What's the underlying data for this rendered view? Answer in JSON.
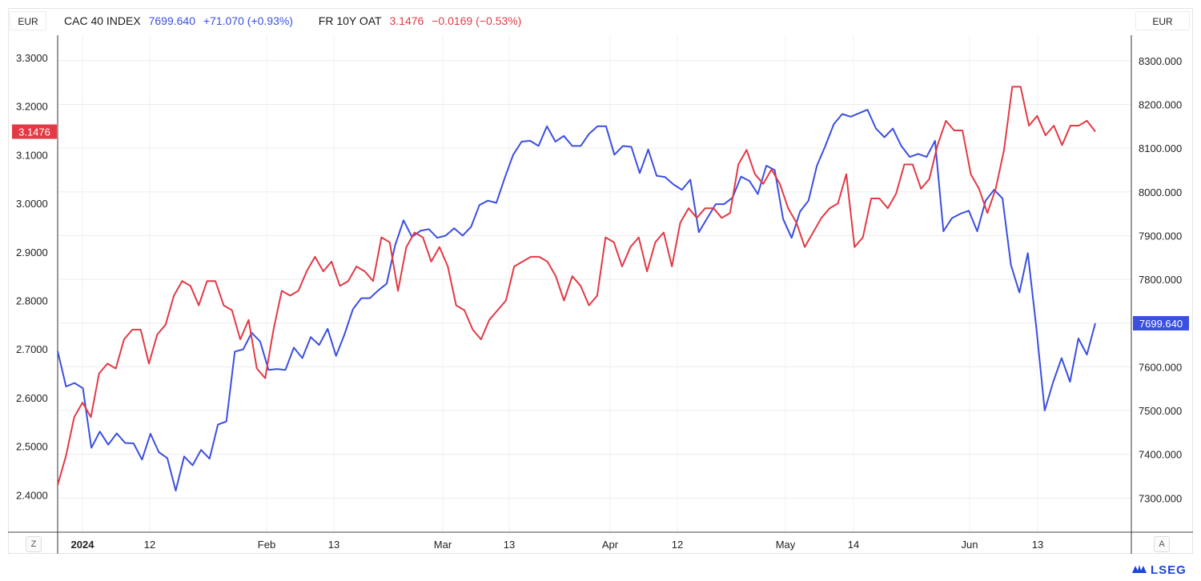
{
  "header": {
    "currency_left": "EUR",
    "currency_right": "EUR",
    "series1": {
      "name": "CAC 40 INDEX",
      "value": "7699.640",
      "change": "+71.070 (+0.93%)"
    },
    "series2": {
      "name": "FR 10Y OAT",
      "value": "3.1476",
      "change": "−0.0169 (−0.53%)"
    }
  },
  "controls": {
    "left": "Z",
    "right": "A"
  },
  "logo": {
    "text": "LSEG"
  },
  "colors": {
    "cac": "#3b4fe0",
    "oat": "#e23a45"
  },
  "chart_data": {
    "type": "line",
    "x_tick_labels": [
      "2024",
      "12",
      "Feb",
      "13",
      "Mar",
      "13",
      "Apr",
      "12",
      "May",
      "14",
      "Jun",
      "13"
    ],
    "y_left": {
      "ticks": [
        "3.3000",
        "3.2000",
        "3.1000",
        "3.0000",
        "2.9000",
        "2.8000",
        "2.7000",
        "2.6000",
        "2.5000",
        "2.4000"
      ],
      "range": [
        2.3,
        3.3
      ]
    },
    "y_right": {
      "ticks": [
        "8300.000",
        "8200.000",
        "8100.000",
        "8000.000",
        "7900.000",
        "7800.000",
        "7700.000",
        "7600.000",
        "7500.000",
        "7400.000",
        "7300.000"
      ],
      "range": [
        7200,
        8300
      ]
    },
    "last_labels": {
      "left": "3.1476",
      "right": "7699.640"
    },
    "series": [
      {
        "name": "CAC 40 INDEX",
        "axis": "right",
        "values": [
          7636,
          7555,
          7563,
          7551,
          7415,
          7452,
          7422,
          7448,
          7426,
          7425,
          7388,
          7447,
          7405,
          7391,
          7317,
          7395,
          7375,
          7410,
          7390,
          7468,
          7475,
          7635,
          7640,
          7678,
          7658,
          7593,
          7595,
          7593,
          7644,
          7620,
          7668,
          7650,
          7687,
          7625,
          7674,
          7732,
          7757,
          7757,
          7775,
          7790,
          7878,
          7935,
          7897,
          7911,
          7915,
          7895,
          7900,
          7917,
          7900,
          7920,
          7970,
          7980,
          7975,
          8032,
          8085,
          8115,
          8117,
          8105,
          8150,
          8115,
          8128,
          8105,
          8105,
          8133,
          8150,
          8150,
          8085,
          8105,
          8103,
          8043,
          8097,
          8037,
          8034,
          8017,
          8005,
          8028,
          7908,
          7940,
          7972,
          7972,
          7987,
          8035,
          8025,
          7995,
          8060,
          8050,
          7938,
          7895,
          7955,
          7980,
          8060,
          8105,
          8155,
          8178,
          8172,
          8180,
          8188,
          8145,
          8125,
          8145,
          8105,
          8080,
          8087,
          8080,
          8117,
          7910,
          7940,
          7950,
          7957,
          7910,
          7980,
          8005,
          7985,
          7833,
          7770,
          7860,
          7692,
          7500,
          7565,
          7620,
          7566,
          7665,
          7628,
          7699.64
        ]
      },
      {
        "name": "FR 10Y OAT",
        "axis": "left",
        "values": [
          2.42,
          2.48,
          2.56,
          2.59,
          2.56,
          2.65,
          2.67,
          2.66,
          2.72,
          2.74,
          2.74,
          2.67,
          2.73,
          2.75,
          2.81,
          2.84,
          2.83,
          2.79,
          2.84,
          2.84,
          2.79,
          2.78,
          2.72,
          2.76,
          2.66,
          2.64,
          2.74,
          2.82,
          2.81,
          2.82,
          2.86,
          2.89,
          2.86,
          2.88,
          2.83,
          2.84,
          2.87,
          2.86,
          2.84,
          2.93,
          2.92,
          2.82,
          2.91,
          2.94,
          2.93,
          2.88,
          2.91,
          2.87,
          2.79,
          2.78,
          2.74,
          2.72,
          2.76,
          2.78,
          2.8,
          2.87,
          2.88,
          2.89,
          2.89,
          2.88,
          2.85,
          2.8,
          2.85,
          2.83,
          2.79,
          2.81,
          2.93,
          2.92,
          2.87,
          2.91,
          2.93,
          2.86,
          2.92,
          2.94,
          2.87,
          2.96,
          2.99,
          2.97,
          2.99,
          2.99,
          2.97,
          2.98,
          3.08,
          3.11,
          3.06,
          3.04,
          3.07,
          3.04,
          2.99,
          2.96,
          2.91,
          2.94,
          2.97,
          2.99,
          3.0,
          3.06,
          2.91,
          2.93,
          3.01,
          3.01,
          2.99,
          3.02,
          3.08,
          3.08,
          3.03,
          3.05,
          3.12,
          3.17,
          3.15,
          3.15,
          3.06,
          3.03,
          2.98,
          3.03,
          3.11,
          3.24,
          3.24,
          3.16,
          3.18,
          3.14,
          3.16,
          3.12,
          3.16,
          3.16,
          3.17,
          3.1476
        ]
      }
    ]
  }
}
